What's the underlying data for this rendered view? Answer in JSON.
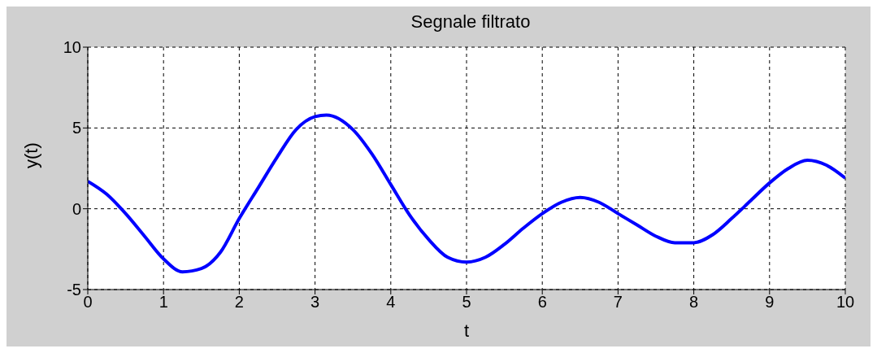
{
  "chart_data": {
    "type": "line",
    "title": "Segnale filtrato",
    "xlabel": "t",
    "ylabel": "y(t)",
    "x": [
      0,
      0.25,
      0.5,
      0.75,
      1,
      1.25,
      1.5,
      1.75,
      2,
      2.25,
      2.5,
      2.75,
      3,
      3.15,
      3.5,
      3.75,
      4,
      4.25,
      4.5,
      4.75,
      5,
      5.25,
      5.5,
      5.75,
      6,
      6.25,
      6.5,
      6.75,
      7,
      7.25,
      7.5,
      7.75,
      8,
      8.25,
      8.5,
      8.75,
      9,
      9.25,
      9.5,
      9.75,
      10
    ],
    "series": [
      {
        "color": "#0000ff",
        "values": [
          1.7,
          0.9,
          -0.3,
          -1.7,
          -3.1,
          -3.9,
          -3.7,
          -2.7,
          -0.6,
          1.3,
          3.2,
          4.9,
          5.7,
          5.8,
          4.9,
          3.4,
          1.5,
          -0.4,
          -1.9,
          -3.0,
          -3.3,
          -3.0,
          -2.2,
          -1.2,
          -0.3,
          0.4,
          0.7,
          0.4,
          -0.3,
          -1.0,
          -1.7,
          -2.1,
          -2.1,
          -1.6,
          -0.6,
          0.5,
          1.6,
          2.5,
          3.0,
          2.7,
          1.9
        ]
      }
    ],
    "xlim": [
      0,
      10
    ],
    "xticks": [
      0,
      1,
      2,
      3,
      4,
      5,
      6,
      7,
      8,
      9,
      10
    ],
    "ylim": [
      -5,
      10
    ],
    "yticks": [
      -5,
      0,
      5,
      10
    ],
    "grid": true,
    "marker": "none",
    "line_style": "solid"
  }
}
